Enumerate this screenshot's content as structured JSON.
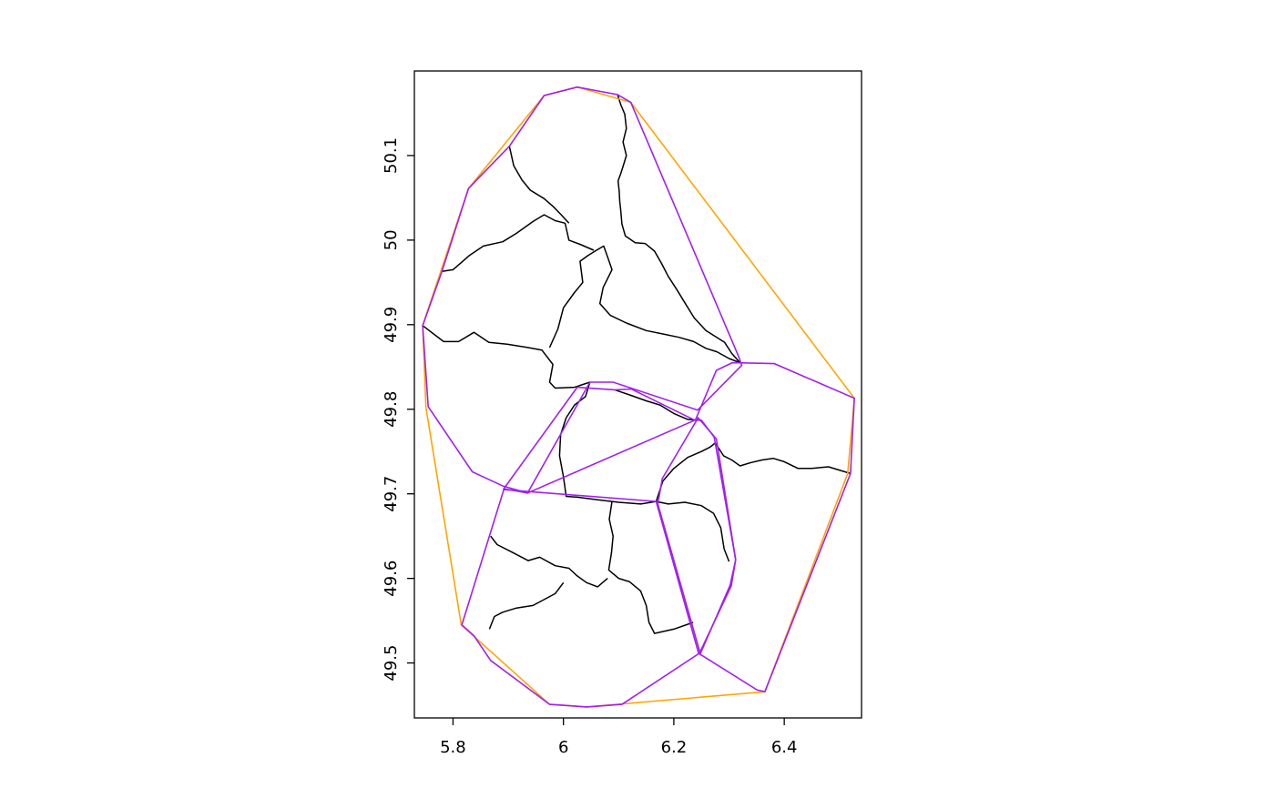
{
  "plot": {
    "x_axis": {
      "range": [
        5.73,
        6.54
      ],
      "ticks": [
        5.8,
        6.0,
        6.2,
        6.4
      ],
      "tick_labels": [
        "5.8",
        "6",
        "6.2",
        "6.4"
      ]
    },
    "y_axis": {
      "range": [
        49.435,
        50.2
      ],
      "ticks": [
        49.5,
        49.6,
        49.7,
        49.8,
        49.9,
        50.0,
        50.1
      ],
      "tick_labels": [
        "49.5",
        "49.6",
        "49.7",
        "49.8",
        "49.9",
        "50",
        "50.1"
      ]
    },
    "colors": {
      "boundaries": "#000000",
      "outer_hull": "#FFA500",
      "inner_hulls": "#A020F0"
    },
    "outer_hull": [
      [
        6.025,
        50.181
      ],
      [
        6.122,
        50.163
      ],
      [
        6.527,
        49.813
      ],
      [
        6.515,
        49.724
      ],
      [
        6.365,
        49.466
      ],
      [
        6.042,
        49.448
      ],
      [
        5.975,
        49.451
      ],
      [
        5.815,
        49.545
      ],
      [
        5.751,
        49.802
      ],
      [
        5.745,
        49.899
      ],
      [
        5.828,
        50.061
      ],
      [
        5.965,
        50.171
      ]
    ],
    "inner_hulls": [
      [
        [
          6.025,
          50.181
        ],
        [
          6.098,
          50.172
        ],
        [
          6.122,
          50.163
        ],
        [
          6.317,
          49.863
        ],
        [
          6.323,
          49.852
        ],
        [
          6.243,
          49.799
        ],
        [
          6.09,
          49.832
        ],
        [
          6.048,
          49.832
        ],
        [
          5.935,
          49.701
        ],
        [
          5.891,
          49.709
        ],
        [
          5.835,
          49.726
        ],
        [
          5.755,
          49.803
        ],
        [
          5.745,
          49.899
        ],
        [
          5.78,
          49.963
        ],
        [
          5.828,
          50.061
        ],
        [
          5.902,
          50.111
        ],
        [
          5.965,
          50.171
        ]
      ],
      [
        [
          6.025,
          49.826
        ],
        [
          6.093,
          49.823
        ],
        [
          6.123,
          49.824
        ],
        [
          6.238,
          49.787
        ],
        [
          5.935,
          49.701
        ],
        [
          5.892,
          49.706
        ]
      ],
      [
        [
          6.277,
          49.846
        ],
        [
          6.306,
          49.855
        ],
        [
          6.382,
          49.854
        ],
        [
          6.527,
          49.813
        ],
        [
          6.52,
          49.724
        ],
        [
          6.365,
          49.466
        ],
        [
          6.351,
          49.468
        ],
        [
          6.246,
          49.511
        ],
        [
          6.304,
          49.591
        ],
        [
          6.312,
          49.622
        ],
        [
          6.273,
          49.767
        ],
        [
          6.25,
          49.787
        ],
        [
          6.239,
          49.787
        ]
      ],
      [
        [
          6.244,
          49.79
        ],
        [
          6.179,
          49.718
        ],
        [
          6.171,
          49.688
        ],
        [
          6.248,
          49.511
        ],
        [
          6.302,
          49.592
        ],
        [
          6.312,
          49.622
        ],
        [
          6.277,
          49.765
        ]
      ],
      [
        [
          5.892,
          49.705
        ],
        [
          6.168,
          49.691
        ],
        [
          6.245,
          49.511
        ],
        [
          6.106,
          49.451
        ],
        [
          6.042,
          49.448
        ],
        [
          5.975,
          49.451
        ],
        [
          5.868,
          49.503
        ],
        [
          5.838,
          49.532
        ],
        [
          5.816,
          49.545
        ]
      ]
    ],
    "boundaries": [
      [
        [
          6.098,
          50.172
        ],
        [
          6.104,
          50.16
        ],
        [
          6.111,
          50.149
        ],
        [
          6.114,
          50.132
        ],
        [
          6.108,
          50.116
        ],
        [
          6.114,
          50.1
        ],
        [
          6.108,
          50.087
        ],
        [
          6.104,
          50.079
        ],
        [
          6.099,
          50.07
        ],
        [
          6.101,
          50.058
        ],
        [
          6.102,
          50.046
        ],
        [
          6.104,
          50.034
        ],
        [
          6.106,
          50.019
        ],
        [
          6.112,
          50.005
        ],
        [
          6.13,
          49.997
        ],
        [
          6.148,
          49.996
        ],
        [
          6.165,
          49.987
        ],
        [
          6.178,
          49.972
        ],
        [
          6.19,
          49.957
        ],
        [
          6.205,
          49.942
        ],
        [
          6.218,
          49.928
        ],
        [
          6.237,
          49.908
        ],
        [
          6.258,
          49.893
        ],
        [
          6.275,
          49.886
        ],
        [
          6.292,
          49.879
        ],
        [
          6.305,
          49.866
        ],
        [
          6.32,
          49.855
        ]
      ],
      [
        [
          5.745,
          49.899
        ],
        [
          5.783,
          49.88
        ],
        [
          5.81,
          49.88
        ],
        [
          5.838,
          49.891
        ],
        [
          5.865,
          49.879
        ],
        [
          5.898,
          49.877
        ],
        [
          5.935,
          49.873
        ],
        [
          5.961,
          49.87
        ],
        [
          5.981,
          49.853
        ],
        [
          5.975,
          49.832
        ],
        [
          5.985,
          49.825
        ],
        [
          6.02,
          49.826
        ],
        [
          6.048,
          49.832
        ]
      ],
      [
        [
          5.975,
          49.873
        ],
        [
          5.99,
          49.895
        ],
        [
          6.0,
          49.92
        ],
        [
          6.02,
          49.938
        ],
        [
          6.035,
          49.95
        ],
        [
          6.03,
          49.975
        ],
        [
          6.045,
          49.982
        ],
        [
          6.06,
          49.988
        ],
        [
          6.073,
          49.993
        ],
        [
          6.08,
          49.98
        ],
        [
          6.088,
          49.965
        ],
        [
          6.072,
          49.944
        ],
        [
          6.066,
          49.925
        ],
        [
          6.085,
          49.911
        ],
        [
          6.114,
          49.902
        ],
        [
          6.15,
          49.893
        ],
        [
          6.18,
          49.889
        ],
        [
          6.21,
          49.885
        ],
        [
          6.236,
          49.88
        ],
        [
          6.258,
          49.872
        ],
        [
          6.278,
          49.868
        ],
        [
          6.3,
          49.86
        ],
        [
          6.32,
          49.855
        ]
      ],
      [
        [
          5.78,
          49.963
        ],
        [
          5.8,
          49.965
        ],
        [
          5.83,
          49.982
        ],
        [
          5.855,
          49.993
        ],
        [
          5.89,
          49.998
        ],
        [
          5.915,
          50.008
        ],
        [
          5.945,
          50.022
        ],
        [
          5.965,
          50.03
        ],
        [
          5.985,
          50.023
        ],
        [
          6.003,
          50.02
        ],
        [
          6.01,
          50.0
        ],
        [
          6.03,
          49.995
        ],
        [
          6.055,
          49.988
        ]
      ],
      [
        [
          5.902,
          50.111
        ],
        [
          5.91,
          50.088
        ],
        [
          5.925,
          50.071
        ],
        [
          5.94,
          50.059
        ],
        [
          5.965,
          50.049
        ],
        [
          5.981,
          50.04
        ],
        [
          5.996,
          50.03
        ],
        [
          6.01,
          50.02
        ]
      ],
      [
        [
          6.048,
          49.832
        ],
        [
          6.04,
          49.815
        ],
        [
          6.02,
          49.805
        ],
        [
          6.005,
          49.79
        ],
        [
          5.995,
          49.77
        ],
        [
          5.993,
          49.745
        ],
        [
          6.0,
          49.72
        ],
        [
          6.005,
          49.697
        ],
        [
          6.025,
          49.696
        ],
        [
          6.062,
          49.693
        ],
        [
          6.1,
          49.69
        ],
        [
          6.14,
          49.688
        ],
        [
          6.168,
          49.691
        ]
      ],
      [
        [
          6.093,
          49.823
        ],
        [
          6.12,
          49.817
        ],
        [
          6.15,
          49.81
        ],
        [
          6.175,
          49.805
        ],
        [
          6.2,
          49.795
        ],
        [
          6.225,
          49.788
        ],
        [
          6.244,
          49.787
        ]
      ],
      [
        [
          6.168,
          49.691
        ],
        [
          6.18,
          49.715
        ],
        [
          6.2,
          49.73
        ],
        [
          6.225,
          49.743
        ],
        [
          6.25,
          49.75
        ],
        [
          6.265,
          49.755
        ],
        [
          6.275,
          49.76
        ],
        [
          6.29,
          49.745
        ],
        [
          6.305,
          49.74
        ],
        [
          6.32,
          49.733
        ],
        [
          6.34,
          49.737
        ],
        [
          6.36,
          49.74
        ],
        [
          6.38,
          49.742
        ],
        [
          6.4,
          49.738
        ],
        [
          6.425,
          49.73
        ],
        [
          6.45,
          49.73
        ],
        [
          6.48,
          49.732
        ],
        [
          6.52,
          49.724
        ]
      ],
      [
        [
          6.168,
          49.691
        ],
        [
          6.19,
          49.688
        ],
        [
          6.22,
          49.69
        ],
        [
          6.25,
          49.686
        ],
        [
          6.272,
          49.677
        ],
        [
          6.285,
          49.66
        ],
        [
          6.291,
          49.635
        ],
        [
          6.3,
          49.62
        ]
      ],
      [
        [
          6.088,
          49.691
        ],
        [
          6.083,
          49.67
        ],
        [
          6.09,
          49.65
        ],
        [
          6.087,
          49.63
        ],
        [
          6.082,
          49.61
        ],
        [
          6.1,
          49.6
        ],
        [
          6.12,
          49.596
        ],
        [
          6.14,
          49.585
        ],
        [
          6.15,
          49.568
        ],
        [
          6.155,
          49.548
        ],
        [
          6.165,
          49.535
        ],
        [
          6.2,
          49.54
        ],
        [
          6.235,
          49.548
        ]
      ],
      [
        [
          5.868,
          49.65
        ],
        [
          5.88,
          49.64
        ],
        [
          5.91,
          49.63
        ],
        [
          5.936,
          49.621
        ],
        [
          5.957,
          49.625
        ],
        [
          5.985,
          49.615
        ],
        [
          6.01,
          49.612
        ],
        [
          6.025,
          49.603
        ],
        [
          6.042,
          49.595
        ],
        [
          6.062,
          49.59
        ],
        [
          6.08,
          49.6
        ]
      ],
      [
        [
          5.866,
          49.54
        ],
        [
          5.875,
          49.555
        ],
        [
          5.89,
          49.56
        ],
        [
          5.915,
          49.565
        ],
        [
          5.945,
          49.568
        ],
        [
          5.965,
          49.575
        ],
        [
          5.985,
          49.582
        ],
        [
          6.0,
          49.595
        ]
      ]
    ]
  }
}
